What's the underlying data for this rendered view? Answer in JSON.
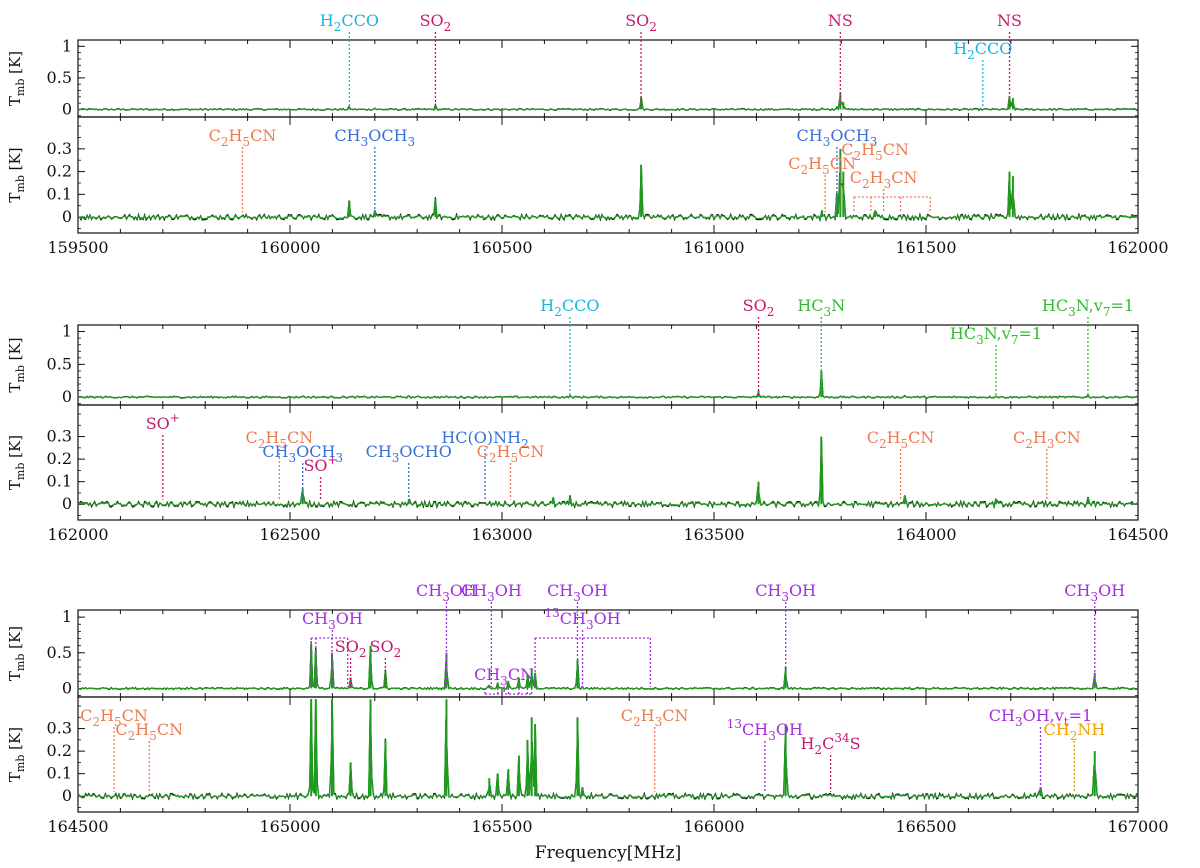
{
  "figure": {
    "xlabel": "Frequency[MHz]",
    "ylabel_main": "T",
    "ylabel_sub": "mb",
    "ylabel_unit": "[K]"
  },
  "colors": {
    "H2CCO": "#1ab3e6",
    "SO2": "#c8176e",
    "NS": "#c8176e",
    "C2H5CN": "#f07a50",
    "C2H3CN": "#f07a50",
    "CH3OCH3": "#3a6fd8",
    "CH3OCHO": "#3a6fd8",
    "HC(O)NH2": "#3a6fd8",
    "HC3N": "#33bb33",
    "SO+": "#c8176e",
    "CH3OH": "#a32ee0",
    "CH3CN": "#a32ee0",
    "13CH3OH": "#a32ee0",
    "H2C34S": "#c8176e",
    "CH2NH": "#f0a000",
    "model": "#1f9a1f",
    "obs": "#000000"
  },
  "chart_data": [
    {
      "type": "line",
      "row": 1,
      "xlim": [
        159500,
        162000
      ],
      "xticks": [
        159500,
        160000,
        160500,
        161000,
        161500,
        162000
      ],
      "top": {
        "ylim": [
          -0.12,
          1.1
        ],
        "yticks": [
          {
            "v": 0,
            "t": "0"
          },
          {
            "v": 0.5,
            "t": "0.5"
          },
          {
            "v": 1,
            "t": "1"
          }
        ],
        "labels": [
          {
            "mol": "H2CCO",
            "text": "H_2_CCO",
            "x": 160140,
            "lx": 160140,
            "ly": 0
          },
          {
            "mol": "SO2",
            "text": "SO_2_",
            "x": 160343,
            "lx": 160343,
            "ly": 0
          },
          {
            "mol": "SO2",
            "text": "SO_2_",
            "x": 160828,
            "lx": 160828,
            "ly": 0
          },
          {
            "mol": "NS",
            "text": "NS",
            "x": 161298,
            "lx": 161298,
            "ly": 0
          },
          {
            "mol": "H2CCO",
            "text": "H_2_CCO",
            "x": 161634,
            "lx": 161634,
            "ly": 1
          },
          {
            "mol": "NS",
            "text": "NS",
            "x": 161697,
            "lx": 161697,
            "ly": 0
          }
        ]
      },
      "bottom": {
        "ylim": [
          -0.07,
          0.44
        ],
        "yticks": [
          {
            "v": 0,
            "t": "0"
          },
          {
            "v": 0.1,
            "t": "0.1"
          },
          {
            "v": 0.2,
            "t": "0.2"
          },
          {
            "v": 0.3,
            "t": "0.3"
          }
        ],
        "labels": [
          {
            "mol": "C2H5CN",
            "text": "C_2_H_5_CN",
            "x": 159888,
            "lx": 159888,
            "ly": 0
          },
          {
            "mol": "CH3OCH3",
            "text": "CH_3_OCH_3_",
            "x": 160200,
            "lx": 160200,
            "ly": 0
          },
          {
            "mol": "CH3OCH3",
            "text": "CH_3_OCH_3_",
            "x": 161290,
            "lx": 161290,
            "ly": 0
          },
          {
            "mol": "C2H5CN",
            "text": "C_2_H_5_CN",
            "x": 161300,
            "lx": 161380,
            "ly": 1
          },
          {
            "mol": "C2H5CN",
            "text": "C_2_H_5_CN",
            "x": 161262,
            "lx": 161255,
            "ly": 2
          },
          {
            "mol": "C2H3CN",
            "text": "C_2_H_3_CN",
            "x": 161370,
            "lx": 161400,
            "ly": 3,
            "bracket": [
              161330,
              161370,
              161400,
              161440,
              161510
            ]
          }
        ]
      },
      "peaks": [
        {
          "x": 160140,
          "t": 0.04,
          "b": 0.07
        },
        {
          "x": 160200,
          "t": 0.02,
          "b": 0.03
        },
        {
          "x": 160343,
          "t": 0.06,
          "b": 0.08
        },
        {
          "x": 160828,
          "t": 0.2,
          "b": 0.23
        },
        {
          "x": 161255,
          "t": 0.03,
          "b": 0.03
        },
        {
          "x": 161290,
          "t": 0.05,
          "b": 0.1
        },
        {
          "x": 161298,
          "t": 0.27,
          "b": 0.3
        },
        {
          "x": 161305,
          "t": 0.12,
          "b": 0.2
        },
        {
          "x": 161380,
          "t": 0.02,
          "b": 0.03
        },
        {
          "x": 161697,
          "t": 0.2,
          "b": 0.2
        },
        {
          "x": 161705,
          "t": 0.18,
          "b": 0.18
        }
      ]
    },
    {
      "type": "line",
      "row": 2,
      "xlim": [
        162000,
        164500
      ],
      "xticks": [
        162000,
        162500,
        163000,
        163500,
        164000,
        164500
      ],
      "top": {
        "ylim": [
          -0.12,
          1.1
        ],
        "yticks": [
          {
            "v": 0,
            "t": "0"
          },
          {
            "v": 0.5,
            "t": "0.5"
          },
          {
            "v": 1,
            "t": "1"
          }
        ],
        "labels": [
          {
            "mol": "H2CCO",
            "text": "H_2_CCO",
            "x": 163160,
            "lx": 163160,
            "ly": 0
          },
          {
            "mol": "SO2",
            "text": "SO_2_",
            "x": 163605,
            "lx": 163605,
            "ly": 0
          },
          {
            "mol": "HC3N",
            "text": "HC_3_N",
            "x": 163753,
            "lx": 163753,
            "ly": 0
          },
          {
            "mol": "HC3N",
            "text": "HC_3_N,v_7_=1",
            "x": 164165,
            "lx": 164165,
            "ly": 1
          },
          {
            "mol": "HC3N",
            "text": "HC_3_N,v_7_=1",
            "x": 164382,
            "lx": 164382,
            "ly": 0
          }
        ]
      },
      "bottom": {
        "ylim": [
          -0.07,
          0.44
        ],
        "yticks": [
          {
            "v": 0,
            "t": "0"
          },
          {
            "v": 0.1,
            "t": "0.1"
          },
          {
            "v": 0.2,
            "t": "0.2"
          },
          {
            "v": 0.3,
            "t": "0.3"
          }
        ],
        "labels": [
          {
            "mol": "SO+",
            "text": "SO^+^",
            "x": 162200,
            "lx": 162200,
            "ly": 0
          },
          {
            "mol": "C2H5CN",
            "text": "C_2_H_5_CN",
            "x": 162475,
            "lx": 162475,
            "ly": 1
          },
          {
            "mol": "CH3OCH3",
            "text": "CH_3_OCH_3_",
            "x": 162530,
            "lx": 162530,
            "ly": 2
          },
          {
            "mol": "SO+",
            "text": "SO^+^",
            "x": 162572,
            "lx": 162572,
            "ly": 3
          },
          {
            "mol": "CH3OCHO",
            "text": "CH_3_OCHO",
            "x": 162780,
            "lx": 162780,
            "ly": 2
          },
          {
            "mol": "HC(O)NH2",
            "text": "HC(O)NH_2_",
            "x": 162960,
            "lx": 162960,
            "ly": 1
          },
          {
            "mol": "C2H5CN",
            "text": "C_2_H_5_CN",
            "x": 163020,
            "lx": 163020,
            "ly": 2
          },
          {
            "mol": "C2H5CN",
            "text": "C_2_H_5_CN",
            "x": 163940,
            "lx": 163940,
            "ly": 1
          },
          {
            "mol": "C2H3CN",
            "text": "C_2_H_3_CN",
            "x": 164285,
            "lx": 164285,
            "ly": 1
          }
        ]
      },
      "peaks": [
        {
          "x": 162530,
          "t": 0.02,
          "b": 0.07
        },
        {
          "x": 162780,
          "t": 0.01,
          "b": 0.02
        },
        {
          "x": 163120,
          "t": 0.01,
          "b": 0.03
        },
        {
          "x": 163160,
          "t": 0.02,
          "b": 0.03
        },
        {
          "x": 163605,
          "t": 0.1,
          "b": 0.1
        },
        {
          "x": 163753,
          "t": 0.4,
          "b": 0.3
        },
        {
          "x": 163950,
          "t": 0.02,
          "b": 0.04
        },
        {
          "x": 164165,
          "t": 0.02,
          "b": 0.02
        },
        {
          "x": 164382,
          "t": 0.03,
          "b": 0.03
        }
      ]
    },
    {
      "type": "line",
      "row": 3,
      "xlim": [
        164500,
        167000
      ],
      "xticks": [
        164500,
        165000,
        165500,
        166000,
        166500,
        167000
      ],
      "top": {
        "ylim": [
          -0.12,
          1.1
        ],
        "yticks": [
          {
            "v": 0,
            "t": "0"
          },
          {
            "v": 0.5,
            "t": "0.5"
          },
          {
            "v": 1,
            "t": "1"
          }
        ],
        "labels": [
          {
            "mol": "CH3OH",
            "text": "CH_3_OH",
            "x": 165061,
            "lx": 165100,
            "ly": 1,
            "bracket": [
              165050,
              165061,
              165099,
              165136
            ]
          },
          {
            "mol": "SO2",
            "text": "SO_2_",
            "x": 165143,
            "lx": 165143,
            "ly": 2
          },
          {
            "mol": "SO2",
            "text": "SO_2_",
            "x": 165225,
            "lx": 165225,
            "ly": 2
          },
          {
            "mol": "CH3OH",
            "text": "CH_3_OH",
            "x": 165369,
            "lx": 165369,
            "ly": 0
          },
          {
            "mol": "CH3OH",
            "text": "CH_3_OH",
            "x": 165475,
            "lx": 165475,
            "ly": 0
          },
          {
            "mol": "CH3CN",
            "text": "CH_3_CN",
            "x": 165465,
            "lx": 165505,
            "ly": 3,
            "bracket": [
              165460,
              165490,
              165515,
              165540,
              165560,
              165570
            ]
          },
          {
            "mol": "CH3OH",
            "text": "CH_3_OH",
            "x": 165678,
            "lx": 165678,
            "ly": 0
          },
          {
            "mol": "13CH3OH",
            "text": "^13^CH_3_OH",
            "x": 165690,
            "lx": 165690,
            "ly": 1,
            "bracket": [
              165578,
              165690,
              165850
            ]
          }
        ],
        "extra_labels": [
          {
            "mol": "CH3OH",
            "text": "CH_3_OH",
            "x": 166169,
            "lx": 166169,
            "ly": 0
          },
          {
            "mol": "CH3OH",
            "text": "CH_3_OH",
            "x": 166898,
            "lx": 166898,
            "ly": 0
          }
        ]
      },
      "bottom": {
        "ylim": [
          -0.07,
          0.44
        ],
        "yticks": [
          {
            "v": 0,
            "t": "0"
          },
          {
            "v": 0.1,
            "t": "0.1"
          },
          {
            "v": 0.2,
            "t": "0.2"
          },
          {
            "v": 0.3,
            "t": "0.3"
          }
        ],
        "labels": [
          {
            "mol": "C2H5CN",
            "text": "C_2_H_5_CN",
            "x": 164585,
            "lx": 164585,
            "ly": 0
          },
          {
            "mol": "C2H5CN",
            "text": "C_2_H_5_CN",
            "x": 164668,
            "lx": 164668,
            "ly": 1
          },
          {
            "mol": "C2H3CN",
            "text": "C_2_H_3_CN",
            "x": 165860,
            "lx": 165860,
            "ly": 0
          },
          {
            "mol": "13CH3OH",
            "text": "^13^CH_3_OH",
            "x": 166120,
            "lx": 166120,
            "ly": 1
          },
          {
            "mol": "H2C34S",
            "text": "H_2_C^34^S",
            "x": 166275,
            "lx": 166275,
            "ly": 2
          },
          {
            "mol": "CH3OH",
            "text": "CH_3_OH,v_t_=1",
            "x": 166770,
            "lx": 166770,
            "ly": 0
          },
          {
            "mol": "CH2NH",
            "text": "CH_2_NH",
            "x": 166850,
            "lx": 166850,
            "ly": 1
          }
        ]
      },
      "peaks": [
        {
          "x": 165050,
          "t": 0.62,
          "b": 0.45
        },
        {
          "x": 165061,
          "t": 0.55,
          "b": 0.45
        },
        {
          "x": 165099,
          "t": 0.5,
          "b": 0.45
        },
        {
          "x": 165143,
          "t": 0.15,
          "b": 0.15
        },
        {
          "x": 165190,
          "t": 0.6,
          "b": 0.45
        },
        {
          "x": 165225,
          "t": 0.25,
          "b": 0.25
        },
        {
          "x": 165369,
          "t": 0.5,
          "b": 0.45
        },
        {
          "x": 165470,
          "t": 0.05,
          "b": 0.08
        },
        {
          "x": 165490,
          "t": 0.08,
          "b": 0.1
        },
        {
          "x": 165515,
          "t": 0.1,
          "b": 0.12
        },
        {
          "x": 165540,
          "t": 0.15,
          "b": 0.18
        },
        {
          "x": 165560,
          "t": 0.2,
          "b": 0.25
        },
        {
          "x": 165570,
          "t": 0.28,
          "b": 0.35
        },
        {
          "x": 165578,
          "t": 0.22,
          "b": 0.32
        },
        {
          "x": 165678,
          "t": 0.4,
          "b": 0.35
        },
        {
          "x": 165690,
          "t": 0.02,
          "b": 0.04
        },
        {
          "x": 166169,
          "t": 0.3,
          "b": 0.32
        },
        {
          "x": 166770,
          "t": 0.02,
          "b": 0.04
        },
        {
          "x": 166898,
          "t": 0.22,
          "b": 0.2
        }
      ]
    }
  ]
}
